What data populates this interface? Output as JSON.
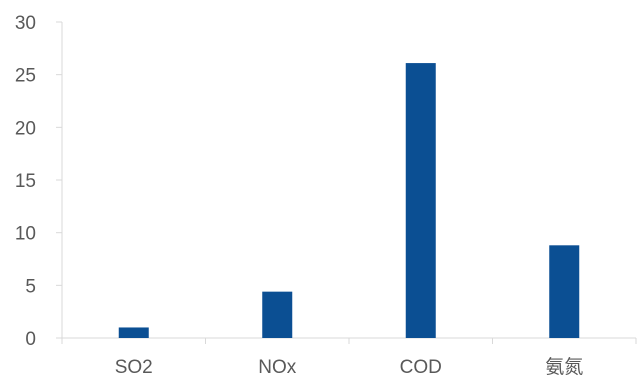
{
  "chart_data": {
    "type": "bar",
    "title": "",
    "xlabel": "",
    "ylabel": "",
    "categories": [
      "SO2",
      "NOx",
      "COD",
      "氨氮"
    ],
    "values": [
      1.0,
      4.4,
      26.1,
      8.8
    ],
    "ylim": [
      0,
      30
    ],
    "yticks": [
      0,
      5,
      10,
      15,
      20,
      25,
      30
    ],
    "grid": false,
    "legend": "none",
    "bar_color": "#0b4f93",
    "axis_color": "#d9d9d9",
    "text_color": "#595959"
  }
}
